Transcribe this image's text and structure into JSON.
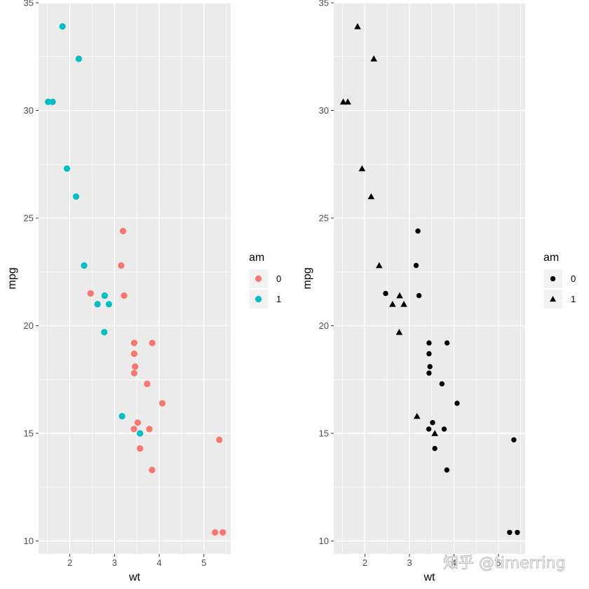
{
  "watermark": "知乎 @timerring",
  "chart_data": [
    {
      "type": "scatter",
      "encoding": "color",
      "xlabel": "wt",
      "ylabel": "mpg",
      "xlim": [
        1.3,
        5.6
      ],
      "ylim": [
        9.4,
        35.0
      ],
      "xticks": [
        2,
        3,
        4,
        5
      ],
      "yticks": [
        10,
        15,
        20,
        25,
        30,
        35
      ],
      "legend": {
        "title": "am",
        "position": "right",
        "entries": [
          {
            "label": "0",
            "color": "#F8766D"
          },
          {
            "label": "1",
            "color": "#00BFC4"
          }
        ]
      },
      "series": [
        {
          "name": "0",
          "color": "#F8766D",
          "points": [
            [
              3.215,
              21.4
            ],
            [
              3.44,
              18.7
            ],
            [
              3.46,
              18.1
            ],
            [
              3.57,
              14.3
            ],
            [
              3.19,
              24.4
            ],
            [
              3.15,
              22.8
            ],
            [
              3.44,
              19.2
            ],
            [
              3.44,
              17.8
            ],
            [
              4.07,
              16.4
            ],
            [
              3.73,
              17.3
            ],
            [
              3.78,
              15.2
            ],
            [
              5.25,
              10.4
            ],
            [
              5.424,
              10.4
            ],
            [
              5.345,
              14.7
            ],
            [
              2.465,
              21.5
            ],
            [
              3.52,
              15.5
            ],
            [
              3.435,
              15.2
            ],
            [
              3.84,
              13.3
            ],
            [
              3.845,
              19.2
            ]
          ]
        },
        {
          "name": "1",
          "color": "#00BFC4",
          "points": [
            [
              2.62,
              21.0
            ],
            [
              2.875,
              21.0
            ],
            [
              2.32,
              22.8
            ],
            [
              2.2,
              32.4
            ],
            [
              1.615,
              30.4
            ],
            [
              1.835,
              33.9
            ],
            [
              1.935,
              27.3
            ],
            [
              2.14,
              26.0
            ],
            [
              1.513,
              30.4
            ],
            [
              3.17,
              15.8
            ],
            [
              2.77,
              19.7
            ],
            [
              3.57,
              15.0
            ],
            [
              2.78,
              21.4
            ]
          ]
        }
      ]
    },
    {
      "type": "scatter",
      "encoding": "shape",
      "xlabel": "wt",
      "ylabel": "mpg",
      "xlim": [
        1.3,
        5.6
      ],
      "ylim": [
        9.4,
        35.0
      ],
      "xticks": [
        2,
        3,
        4,
        5
      ],
      "yticks": [
        10,
        15,
        20,
        25,
        30,
        35
      ],
      "legend": {
        "title": "am",
        "position": "right",
        "entries": [
          {
            "label": "0",
            "shape": "circle"
          },
          {
            "label": "1",
            "shape": "triangle"
          }
        ]
      },
      "series": [
        {
          "name": "0",
          "shape": "circle",
          "color": "#000000",
          "points": [
            [
              3.215,
              21.4
            ],
            [
              3.44,
              18.7
            ],
            [
              3.46,
              18.1
            ],
            [
              3.57,
              14.3
            ],
            [
              3.19,
              24.4
            ],
            [
              3.15,
              22.8
            ],
            [
              3.44,
              19.2
            ],
            [
              3.44,
              17.8
            ],
            [
              4.07,
              16.4
            ],
            [
              3.73,
              17.3
            ],
            [
              3.78,
              15.2
            ],
            [
              5.25,
              10.4
            ],
            [
              5.424,
              10.4
            ],
            [
              5.345,
              14.7
            ],
            [
              2.465,
              21.5
            ],
            [
              3.52,
              15.5
            ],
            [
              3.435,
              15.2
            ],
            [
              3.84,
              13.3
            ],
            [
              3.845,
              19.2
            ]
          ]
        },
        {
          "name": "1",
          "shape": "triangle",
          "color": "#000000",
          "points": [
            [
              2.62,
              21.0
            ],
            [
              2.875,
              21.0
            ],
            [
              2.32,
              22.8
            ],
            [
              2.2,
              32.4
            ],
            [
              1.615,
              30.4
            ],
            [
              1.835,
              33.9
            ],
            [
              1.935,
              27.3
            ],
            [
              2.14,
              26.0
            ],
            [
              1.513,
              30.4
            ],
            [
              3.17,
              15.8
            ],
            [
              2.77,
              19.7
            ],
            [
              3.57,
              15.0
            ],
            [
              2.78,
              21.4
            ]
          ]
        }
      ]
    }
  ]
}
